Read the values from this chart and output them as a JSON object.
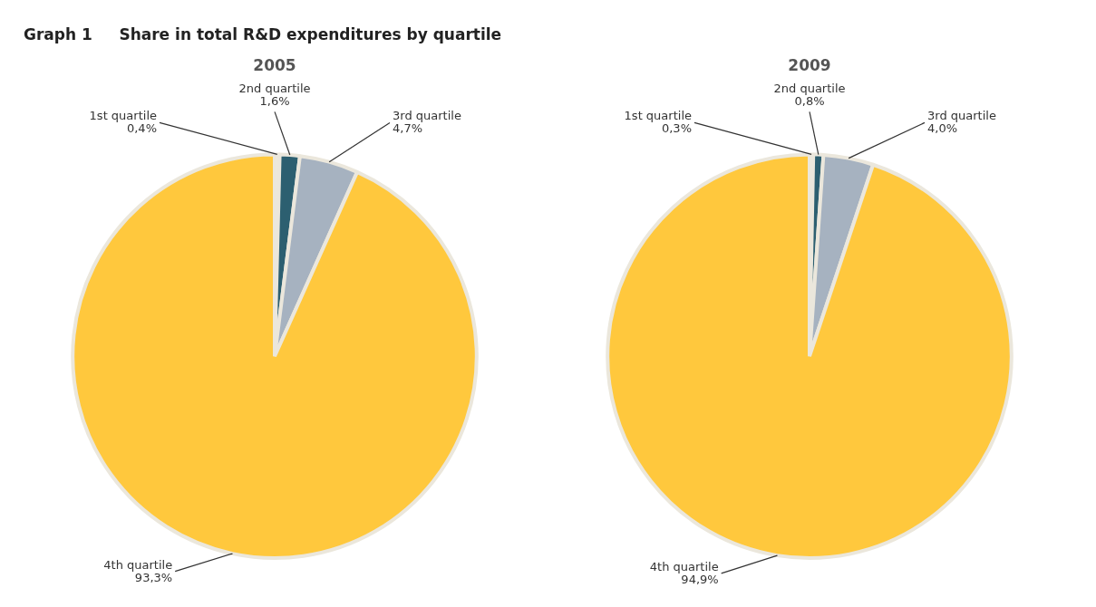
{
  "chart_data": [
    {
      "type": "pie",
      "title": "2005",
      "annotations": [
        "Graph 1     Share in total R&D expenditures by quartile"
      ],
      "categories": [
        "1st quartile",
        "2nd quartile",
        "3rd quartile",
        "4th quartile"
      ],
      "values": [
        0.4,
        1.6,
        4.7,
        93.3
      ],
      "value_labels": [
        "0,4%",
        "1,6%",
        "4,7%",
        "93,3%"
      ],
      "colors": [
        "#ece8dc",
        "#2c5f70",
        "#a6b2c0",
        "#ffc83d"
      ],
      "legend": false
    },
    {
      "type": "pie",
      "title": "2009",
      "categories": [
        "1st quartile",
        "2nd quartile",
        "3rd quartile",
        "4th quartile"
      ],
      "values": [
        0.3,
        0.8,
        4.0,
        94.9
      ],
      "value_labels": [
        "0,3%",
        "0,8%",
        "4,0%",
        "94,9%"
      ],
      "colors": [
        "#ece8dc",
        "#2c5f70",
        "#a6b2c0",
        "#ffc83d"
      ],
      "legend": false
    }
  ]
}
